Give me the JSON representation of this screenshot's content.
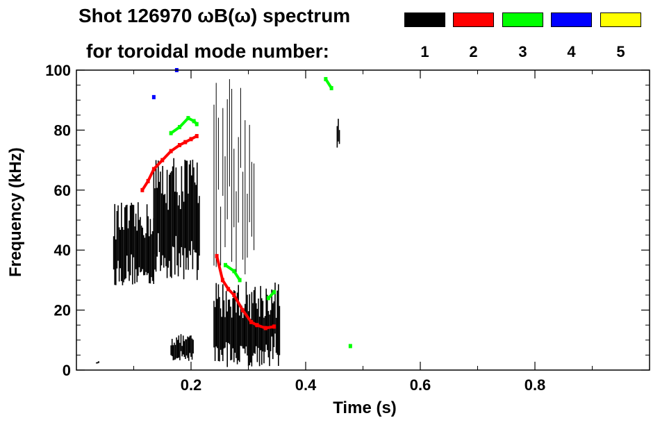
{
  "title": {
    "line1": "Shot 126970 ωB(ω) spectrum",
    "line2": "for toroidal mode number:"
  },
  "legend": [
    {
      "label": "1",
      "color": "#000000"
    },
    {
      "label": "2",
      "color": "#ff0000"
    },
    {
      "label": "3",
      "color": "#00ff00"
    },
    {
      "label": "4",
      "color": "#0000ff"
    },
    {
      "label": "5",
      "color": "#ffff00"
    }
  ],
  "chart_data": {
    "type": "heatmap",
    "xlabel": "Time (s)",
    "ylabel": "Frequency (kHz)",
    "xlim": [
      0.0,
      1.0
    ],
    "ylim": [
      0,
      100
    ],
    "xticks": [
      0.2,
      0.4,
      0.6,
      0.8
    ],
    "xtick_labels": [
      "0.2",
      "0.4",
      "0.6",
      "0.8"
    ],
    "yticks": [
      0,
      20,
      40,
      60,
      80,
      100
    ],
    "ytick_labels": [
      "0",
      "20",
      "40",
      "60",
      "80",
      "100"
    ],
    "grid": false,
    "legend_position": "top",
    "series": [
      {
        "mode": 1,
        "color": "#000000",
        "regions": [
          {
            "t": [
              0.065,
              0.135
            ],
            "f": [
              28,
              56
            ],
            "desc": "broadband patch"
          },
          {
            "t": [
              0.135,
              0.215
            ],
            "f": [
              30,
              72
            ],
            "desc": "rising chirp"
          },
          {
            "t": [
              0.165,
              0.205
            ],
            "f": [
              3,
              12
            ],
            "desc": "low frequency"
          },
          {
            "t": [
              0.24,
              0.355
            ],
            "f": [
              1,
              30
            ],
            "desc": "broadband low frequency"
          },
          {
            "t": [
              0.24,
              0.31
            ],
            "f": [
              30,
              100
            ],
            "desc": "vertical streaks"
          },
          {
            "t": [
              0.455,
              0.46
            ],
            "f": [
              74,
              84
            ],
            "desc": "short burst"
          },
          {
            "t": [
              0.035,
              0.04
            ],
            "f": [
              2,
              3
            ],
            "desc": "spot"
          }
        ]
      },
      {
        "mode": 2,
        "color": "#ff0000",
        "points": [
          [
            0.115,
            60
          ],
          [
            0.125,
            63
          ],
          [
            0.135,
            67
          ],
          [
            0.15,
            70
          ],
          [
            0.165,
            73
          ],
          [
            0.18,
            75
          ],
          [
            0.19,
            76
          ],
          [
            0.2,
            77
          ],
          [
            0.21,
            78
          ],
          [
            0.245,
            38
          ],
          [
            0.255,
            30
          ],
          [
            0.265,
            27
          ],
          [
            0.275,
            25
          ],
          [
            0.29,
            20
          ],
          [
            0.305,
            16
          ],
          [
            0.315,
            15
          ],
          [
            0.33,
            14
          ],
          [
            0.345,
            14.5
          ]
        ]
      },
      {
        "mode": 3,
        "color": "#00ff00",
        "points": [
          [
            0.165,
            79
          ],
          [
            0.18,
            81
          ],
          [
            0.195,
            84
          ],
          [
            0.205,
            83
          ],
          [
            0.21,
            82
          ],
          [
            0.26,
            35
          ],
          [
            0.275,
            33
          ],
          [
            0.285,
            30
          ],
          [
            0.335,
            24
          ],
          [
            0.345,
            26
          ],
          [
            0.435,
            97
          ],
          [
            0.445,
            94
          ],
          [
            0.478,
            8
          ]
        ]
      },
      {
        "mode": 4,
        "color": "#0000ff",
        "points": [
          [
            0.135,
            91
          ],
          [
            0.175,
            100
          ]
        ]
      },
      {
        "mode": 5,
        "color": "#ffff00",
        "points": []
      }
    ]
  }
}
